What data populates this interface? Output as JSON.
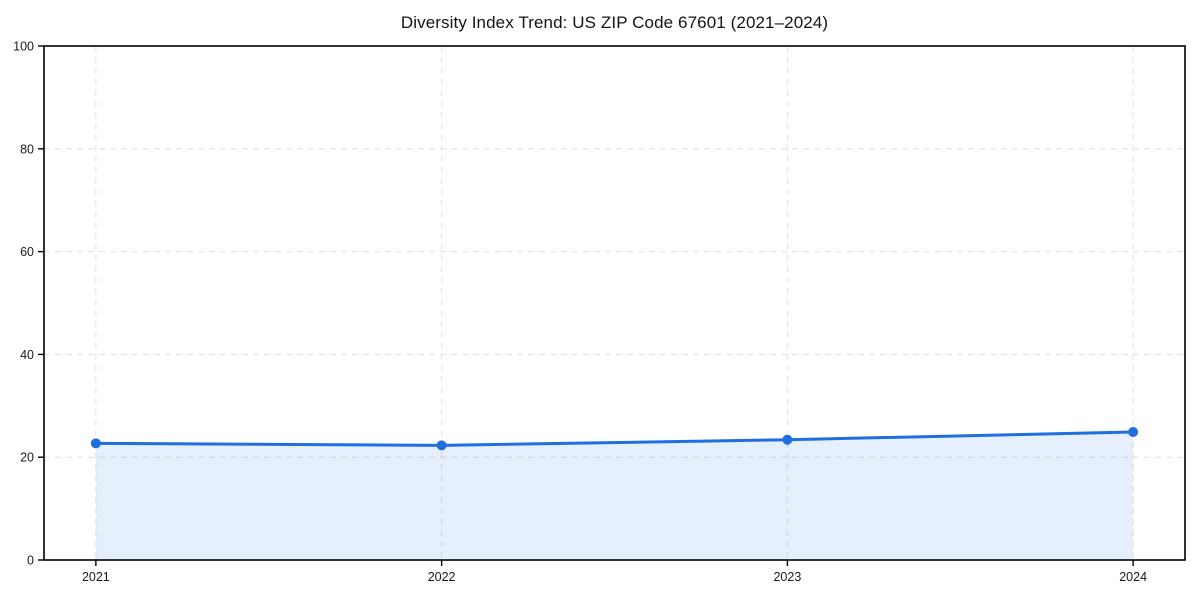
{
  "chart_data": {
    "type": "line",
    "title": "Diversity Index Trend: US ZIP Code 67601 (2021–2024)",
    "categories": [
      "2021",
      "2022",
      "2023",
      "2024"
    ],
    "series": [
      {
        "name": "Diversity Index",
        "values": [
          22.7,
          22.3,
          23.4,
          24.9
        ]
      }
    ],
    "xlabel": "",
    "ylabel": "",
    "ylim": [
      0,
      100
    ],
    "yticks": [
      0,
      20,
      40,
      60,
      80,
      100
    ],
    "grid": "dashed, both axes",
    "legend": "none",
    "area_fill_to_zero": true,
    "markers": "circle",
    "colors": {
      "line": "#1f6fe0",
      "marker": "#1f6fe0",
      "area_fill": "rgba(31, 111, 224, 0.11)",
      "gridline": "#e0e0e0",
      "spine": "#000000",
      "text": "#1a1a1a",
      "background": "#ffffff"
    }
  }
}
